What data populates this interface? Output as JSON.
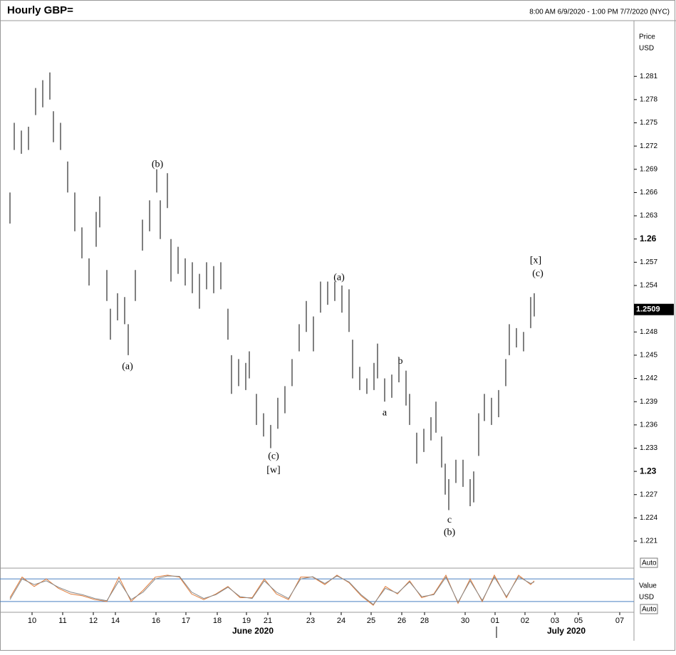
{
  "header": {
    "title": "Hourly GBP=",
    "range": "8:00 AM 6/9/2020 - 1:00 PM 7/7/2020 (NYC)"
  },
  "chart_data": [
    {
      "type": "ohlc",
      "axis_title": "Price",
      "axis_unit": "USD",
      "color": "#000000",
      "scale_button": "Auto",
      "x": [
        0,
        6,
        16,
        26,
        36,
        46,
        56,
        61,
        71,
        81,
        91,
        101,
        111,
        121,
        126,
        136,
        141,
        151,
        161,
        166,
        176,
        186,
        196,
        206,
        211,
        221,
        226,
        236,
        246,
        256,
        266,
        276,
        286,
        296,
        306,
        311,
        321,
        331,
        336,
        346,
        356,
        366,
        376,
        386,
        396,
        406,
        416,
        426,
        436,
        446,
        456,
        466,
        476,
        481,
        491,
        501,
        511,
        516,
        526,
        536,
        546,
        556,
        561,
        571,
        581,
        591,
        598,
        606,
        611,
        616,
        626,
        636,
        646,
        651,
        658,
        666,
        676,
        686,
        696,
        701,
        711,
        721,
        731,
        736
      ],
      "high": [
        1.266,
        1.275,
        1.274,
        1.2745,
        1.2795,
        1.2805,
        1.2815,
        1.2765,
        1.275,
        1.27,
        1.266,
        1.2615,
        1.2575,
        1.2635,
        1.2655,
        1.256,
        1.251,
        1.253,
        1.2525,
        1.249,
        1.256,
        1.2625,
        1.265,
        1.269,
        1.265,
        1.2685,
        1.26,
        1.259,
        1.2575,
        1.257,
        1.2555,
        1.257,
        1.2565,
        1.257,
        1.251,
        1.245,
        1.2445,
        1.244,
        1.2455,
        1.24,
        1.2375,
        1.236,
        1.2395,
        1.241,
        1.2445,
        1.249,
        1.252,
        1.25,
        1.2545,
        1.2545,
        1.2545,
        1.254,
        1.2535,
        1.247,
        1.2435,
        1.242,
        1.244,
        1.2465,
        1.242,
        1.2425,
        1.244,
        1.243,
        1.24,
        1.235,
        1.2355,
        1.237,
        1.239,
        1.2345,
        1.231,
        1.229,
        1.2315,
        1.2315,
        1.229,
        1.23,
        1.2375,
        1.24,
        1.2395,
        1.2405,
        1.2445,
        1.249,
        1.2485,
        1.248,
        1.2525,
        1.253
      ],
      "low": [
        1.262,
        1.2715,
        1.271,
        1.2715,
        1.276,
        1.277,
        1.278,
        1.2725,
        1.2715,
        1.266,
        1.261,
        1.2575,
        1.254,
        1.259,
        1.2615,
        1.252,
        1.247,
        1.2495,
        1.249,
        1.245,
        1.252,
        1.2585,
        1.261,
        1.266,
        1.26,
        1.264,
        1.2545,
        1.2555,
        1.254,
        1.253,
        1.251,
        1.2535,
        1.253,
        1.2535,
        1.247,
        1.24,
        1.241,
        1.2405,
        1.242,
        1.236,
        1.2345,
        1.233,
        1.2355,
        1.2375,
        1.241,
        1.2455,
        1.248,
        1.2455,
        1.2505,
        1.2515,
        1.252,
        1.2505,
        1.248,
        1.242,
        1.2405,
        1.24,
        1.2405,
        1.242,
        1.239,
        1.2395,
        1.2415,
        1.2385,
        1.236,
        1.231,
        1.2325,
        1.234,
        1.235,
        1.2305,
        1.227,
        1.225,
        1.2285,
        1.228,
        1.2255,
        1.226,
        1.232,
        1.2365,
        1.236,
        1.237,
        1.241,
        1.245,
        1.246,
        1.2455,
        1.2485,
        1.25
      ],
      "last": 1.2509,
      "xlim": [
        0,
        876
      ],
      "ylim": [
        1.2176,
        1.2881
      ],
      "yticks": [
        1.221,
        1.224,
        1.227,
        1.23,
        1.233,
        1.236,
        1.239,
        1.242,
        1.245,
        1.248,
        1.251,
        1.254,
        1.257,
        1.26,
        1.263,
        1.266,
        1.269,
        1.272,
        1.275,
        1.278,
        1.281
      ],
      "xticks": [
        {
          "value": 31,
          "label": "10"
        },
        {
          "value": 74,
          "label": "11"
        },
        {
          "value": 117,
          "label": "12"
        },
        {
          "value": 148,
          "label": "14"
        },
        {
          "value": 205,
          "label": "16"
        },
        {
          "value": 247,
          "label": "17"
        },
        {
          "value": 291,
          "label": "18"
        },
        {
          "value": 332,
          "label": "19"
        },
        {
          "value": 362,
          "label": "21"
        },
        {
          "value": 422,
          "label": "23"
        },
        {
          "value": 465,
          "label": "24"
        },
        {
          "value": 507,
          "label": "25"
        },
        {
          "value": 550,
          "label": "26"
        },
        {
          "value": 582,
          "label": "28"
        },
        {
          "value": 639,
          "label": "30"
        },
        {
          "value": 681,
          "label": "01"
        },
        {
          "value": 723,
          "label": "02"
        },
        {
          "value": 765,
          "label": "03"
        },
        {
          "value": 798,
          "label": "05"
        },
        {
          "value": 856,
          "label": "07"
        }
      ],
      "month_labels": [
        {
          "value": 341,
          "label": "June 2020"
        },
        {
          "value": 781,
          "label": "July 2020"
        }
      ],
      "annotations": [
        {
          "text": "(b)",
          "x": 207,
          "y": 1.2696
        },
        {
          "text": "(a)",
          "x": 165,
          "y": 1.2435
        },
        {
          "text": "(c)",
          "x": 370,
          "y": 1.2319
        },
        {
          "text": "[w]",
          "x": 370,
          "y": 1.2301
        },
        {
          "text": "(a)",
          "x": 462,
          "y": 1.255
        },
        {
          "text": "a",
          "x": 526,
          "y": 1.2375
        },
        {
          "text": "b",
          "x": 548,
          "y": 1.2442
        },
        {
          "text": "c",
          "x": 617,
          "y": 1.2237
        },
        {
          "text": "(b)",
          "x": 617,
          "y": 1.2221
        },
        {
          "text": "[x]",
          "x": 738,
          "y": 1.2572
        },
        {
          "text": "(c)",
          "x": 741,
          "y": 1.2555
        }
      ]
    },
    {
      "type": "line",
      "axis_title": "Value",
      "axis_unit": "USD",
      "scale_button": "Auto",
      "x": [
        0,
        17,
        34,
        51,
        68,
        85,
        102,
        119,
        136,
        153,
        170,
        187,
        204,
        221,
        238,
        255,
        272,
        289,
        306,
        323,
        340,
        357,
        374,
        391,
        408,
        425,
        442,
        459,
        476,
        493,
        510,
        527,
        544,
        561,
        578,
        595,
        612,
        629,
        646,
        663,
        680,
        697,
        714,
        731,
        736
      ],
      "series": [
        {
          "color": "#e07b39",
          "values": [
            30,
            85,
            60,
            80,
            55,
            40,
            35,
            25,
            20,
            85,
            20,
            50,
            85,
            90,
            85,
            40,
            25,
            40,
            60,
            30,
            30,
            80,
            40,
            25,
            85,
            85,
            65,
            90,
            70,
            35,
            10,
            60,
            40,
            75,
            30,
            40,
            90,
            15,
            80,
            20,
            90,
            30,
            90,
            65,
            75
          ]
        },
        {
          "color": "#888888",
          "values": [
            25,
            80,
            65,
            75,
            58,
            45,
            38,
            28,
            22,
            75,
            25,
            45,
            80,
            88,
            87,
            45,
            28,
            38,
            58,
            33,
            28,
            75,
            45,
            28,
            80,
            86,
            68,
            88,
            72,
            38,
            12,
            55,
            42,
            72,
            33,
            38,
            85,
            18,
            75,
            23,
            85,
            33,
            86,
            68,
            72
          ]
        }
      ],
      "reference_lines": [
        80,
        20
      ],
      "reference_color": "#4a7fc1",
      "xlim": [
        0,
        876
      ],
      "ylim": [
        -5,
        105
      ]
    }
  ]
}
